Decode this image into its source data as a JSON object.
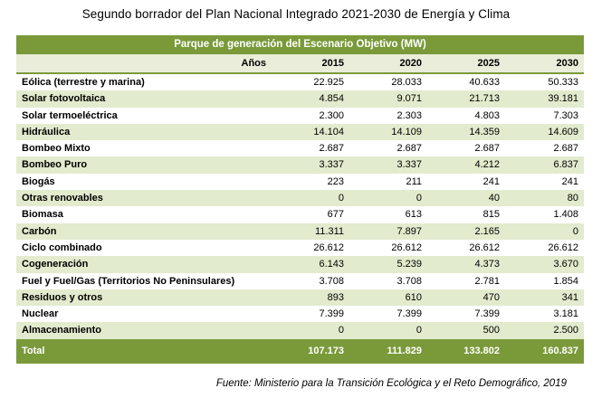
{
  "title": "Segundo borrador del Plan Nacional Integrado 2021-2030 de Energía y Clima",
  "table": {
    "banner": "Parque de generación del Escenario Objetivo (MW)",
    "years_label": "Años",
    "years": [
      "2015",
      "2020",
      "2025",
      "2030"
    ],
    "rows": [
      {
        "name": "Eólica (terrestre y marina)",
        "values": [
          "22.925",
          "28.033",
          "40.633",
          "50.333"
        ]
      },
      {
        "name": "Solar fotovoltaica",
        "values": [
          "4.854",
          "9.071",
          "21.713",
          "39.181"
        ]
      },
      {
        "name": "Solar termoeléctrica",
        "values": [
          "2.300",
          "2.303",
          "4.803",
          "7.303"
        ]
      },
      {
        "name": "Hidráulica",
        "values": [
          "14.104",
          "14.109",
          "14.359",
          "14.609"
        ]
      },
      {
        "name": "Bombeo Mixto",
        "values": [
          "2.687",
          "2.687",
          "2.687",
          "2.687"
        ]
      },
      {
        "name": "Bombeo Puro",
        "values": [
          "3.337",
          "3.337",
          "4.212",
          "6.837"
        ]
      },
      {
        "name": "Biogás",
        "values": [
          "223",
          "211",
          "241",
          "241"
        ]
      },
      {
        "name": "Otras renovables",
        "values": [
          "0",
          "0",
          "40",
          "80"
        ]
      },
      {
        "name": "Biomasa",
        "values": [
          "677",
          "613",
          "815",
          "1.408"
        ]
      },
      {
        "name": "Carbón",
        "values": [
          "11.311",
          "7.897",
          "2.165",
          "0"
        ]
      },
      {
        "name": "Ciclo combinado",
        "values": [
          "26.612",
          "26.612",
          "26.612",
          "26.612"
        ]
      },
      {
        "name": "Cogeneración",
        "values": [
          "6.143",
          "5.239",
          "4.373",
          "3.670"
        ]
      },
      {
        "name": "Fuel y Fuel/Gas (Territorios No Peninsulares)",
        "values": [
          "3.708",
          "3.708",
          "2.781",
          "1.854"
        ]
      },
      {
        "name": "Residuos y otros",
        "values": [
          "893",
          "610",
          "470",
          "341"
        ]
      },
      {
        "name": "Nuclear",
        "values": [
          "7.399",
          "7.399",
          "7.399",
          "3.181"
        ]
      },
      {
        "name": "Almacenamiento",
        "values": [
          "0",
          "0",
          "500",
          "2.500"
        ]
      }
    ],
    "total": {
      "name": "Total",
      "values": [
        "107.173",
        "111.829",
        "133.802",
        "160.837"
      ]
    }
  },
  "source": "Fuente: Ministerio para la Transición Ecológica y el Reto Demográfico, 2019",
  "colors": {
    "header_green": "#7a9a3a",
    "band_green": "#e2ebcd"
  }
}
